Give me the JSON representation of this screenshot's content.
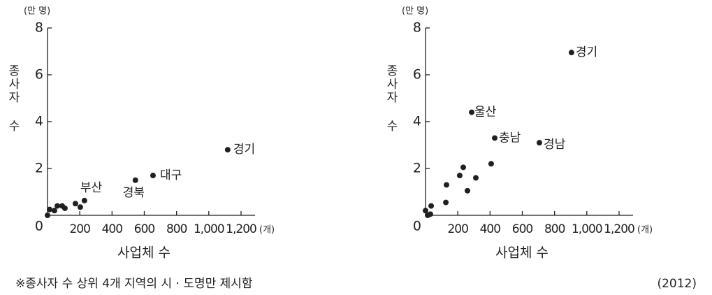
{
  "chart_data": [
    {
      "type": "scatter",
      "y_unit": "(만 명)",
      "y_label": "종사자 수",
      "x_label": "사업체 수",
      "x_unit": "(개)",
      "color": "#231f20",
      "x": [
        0,
        13,
        43,
        61,
        91,
        108,
        173,
        203,
        229,
        545,
        654,
        1117
      ],
      "values": [
        0,
        0.25,
        0.2,
        0.4,
        0.4,
        0.3,
        0.5,
        0.35,
        0.63,
        1.5,
        1.7,
        2.8
      ],
      "point_labels": [
        null,
        null,
        null,
        null,
        null,
        null,
        null,
        null,
        "부산",
        "경북",
        "대구",
        "경기"
      ],
      "xlim": [
        0,
        1200
      ],
      "ylim": [
        0,
        8
      ],
      "xticks": [
        200,
        400,
        600,
        800,
        {
          "value": 1000,
          "label": "1,000"
        },
        {
          "value": 1200,
          "label": "1,200"
        }
      ],
      "yticks": [
        0,
        2,
        4,
        6,
        8
      ]
    },
    {
      "type": "scatter",
      "y_unit": "(만 명)",
      "y_label": "종사자 수",
      "x_label": "사업체 수",
      "x_unit": "(개)",
      "color": "#231f20",
      "x": [
        0,
        13,
        30,
        35,
        126,
        130,
        212,
        234,
        260,
        312,
        407,
        286,
        429,
        706,
        905
      ],
      "values": [
        0.2,
        0,
        0.05,
        0.4,
        0.55,
        1.3,
        1.7,
        2.05,
        1.05,
        1.6,
        2.2,
        4.4,
        3.3,
        3.1,
        6.95
      ],
      "point_labels": [
        null,
        null,
        null,
        null,
        null,
        null,
        null,
        null,
        null,
        null,
        null,
        "울산",
        "충남",
        "경남",
        "경기"
      ],
      "xlim": [
        0,
        1200
      ],
      "ylim": [
        0,
        8
      ],
      "xticks": [
        200,
        400,
        600,
        800,
        {
          "value": 1000,
          "label": "1,000"
        },
        {
          "value": 1200,
          "label": "1,200"
        }
      ],
      "yticks": [
        0,
        2,
        4,
        6,
        8
      ]
    }
  ],
  "note": "※종사자 수 상위 4개 지역의 시 · 도명만 제시함",
  "year": "(2012)"
}
